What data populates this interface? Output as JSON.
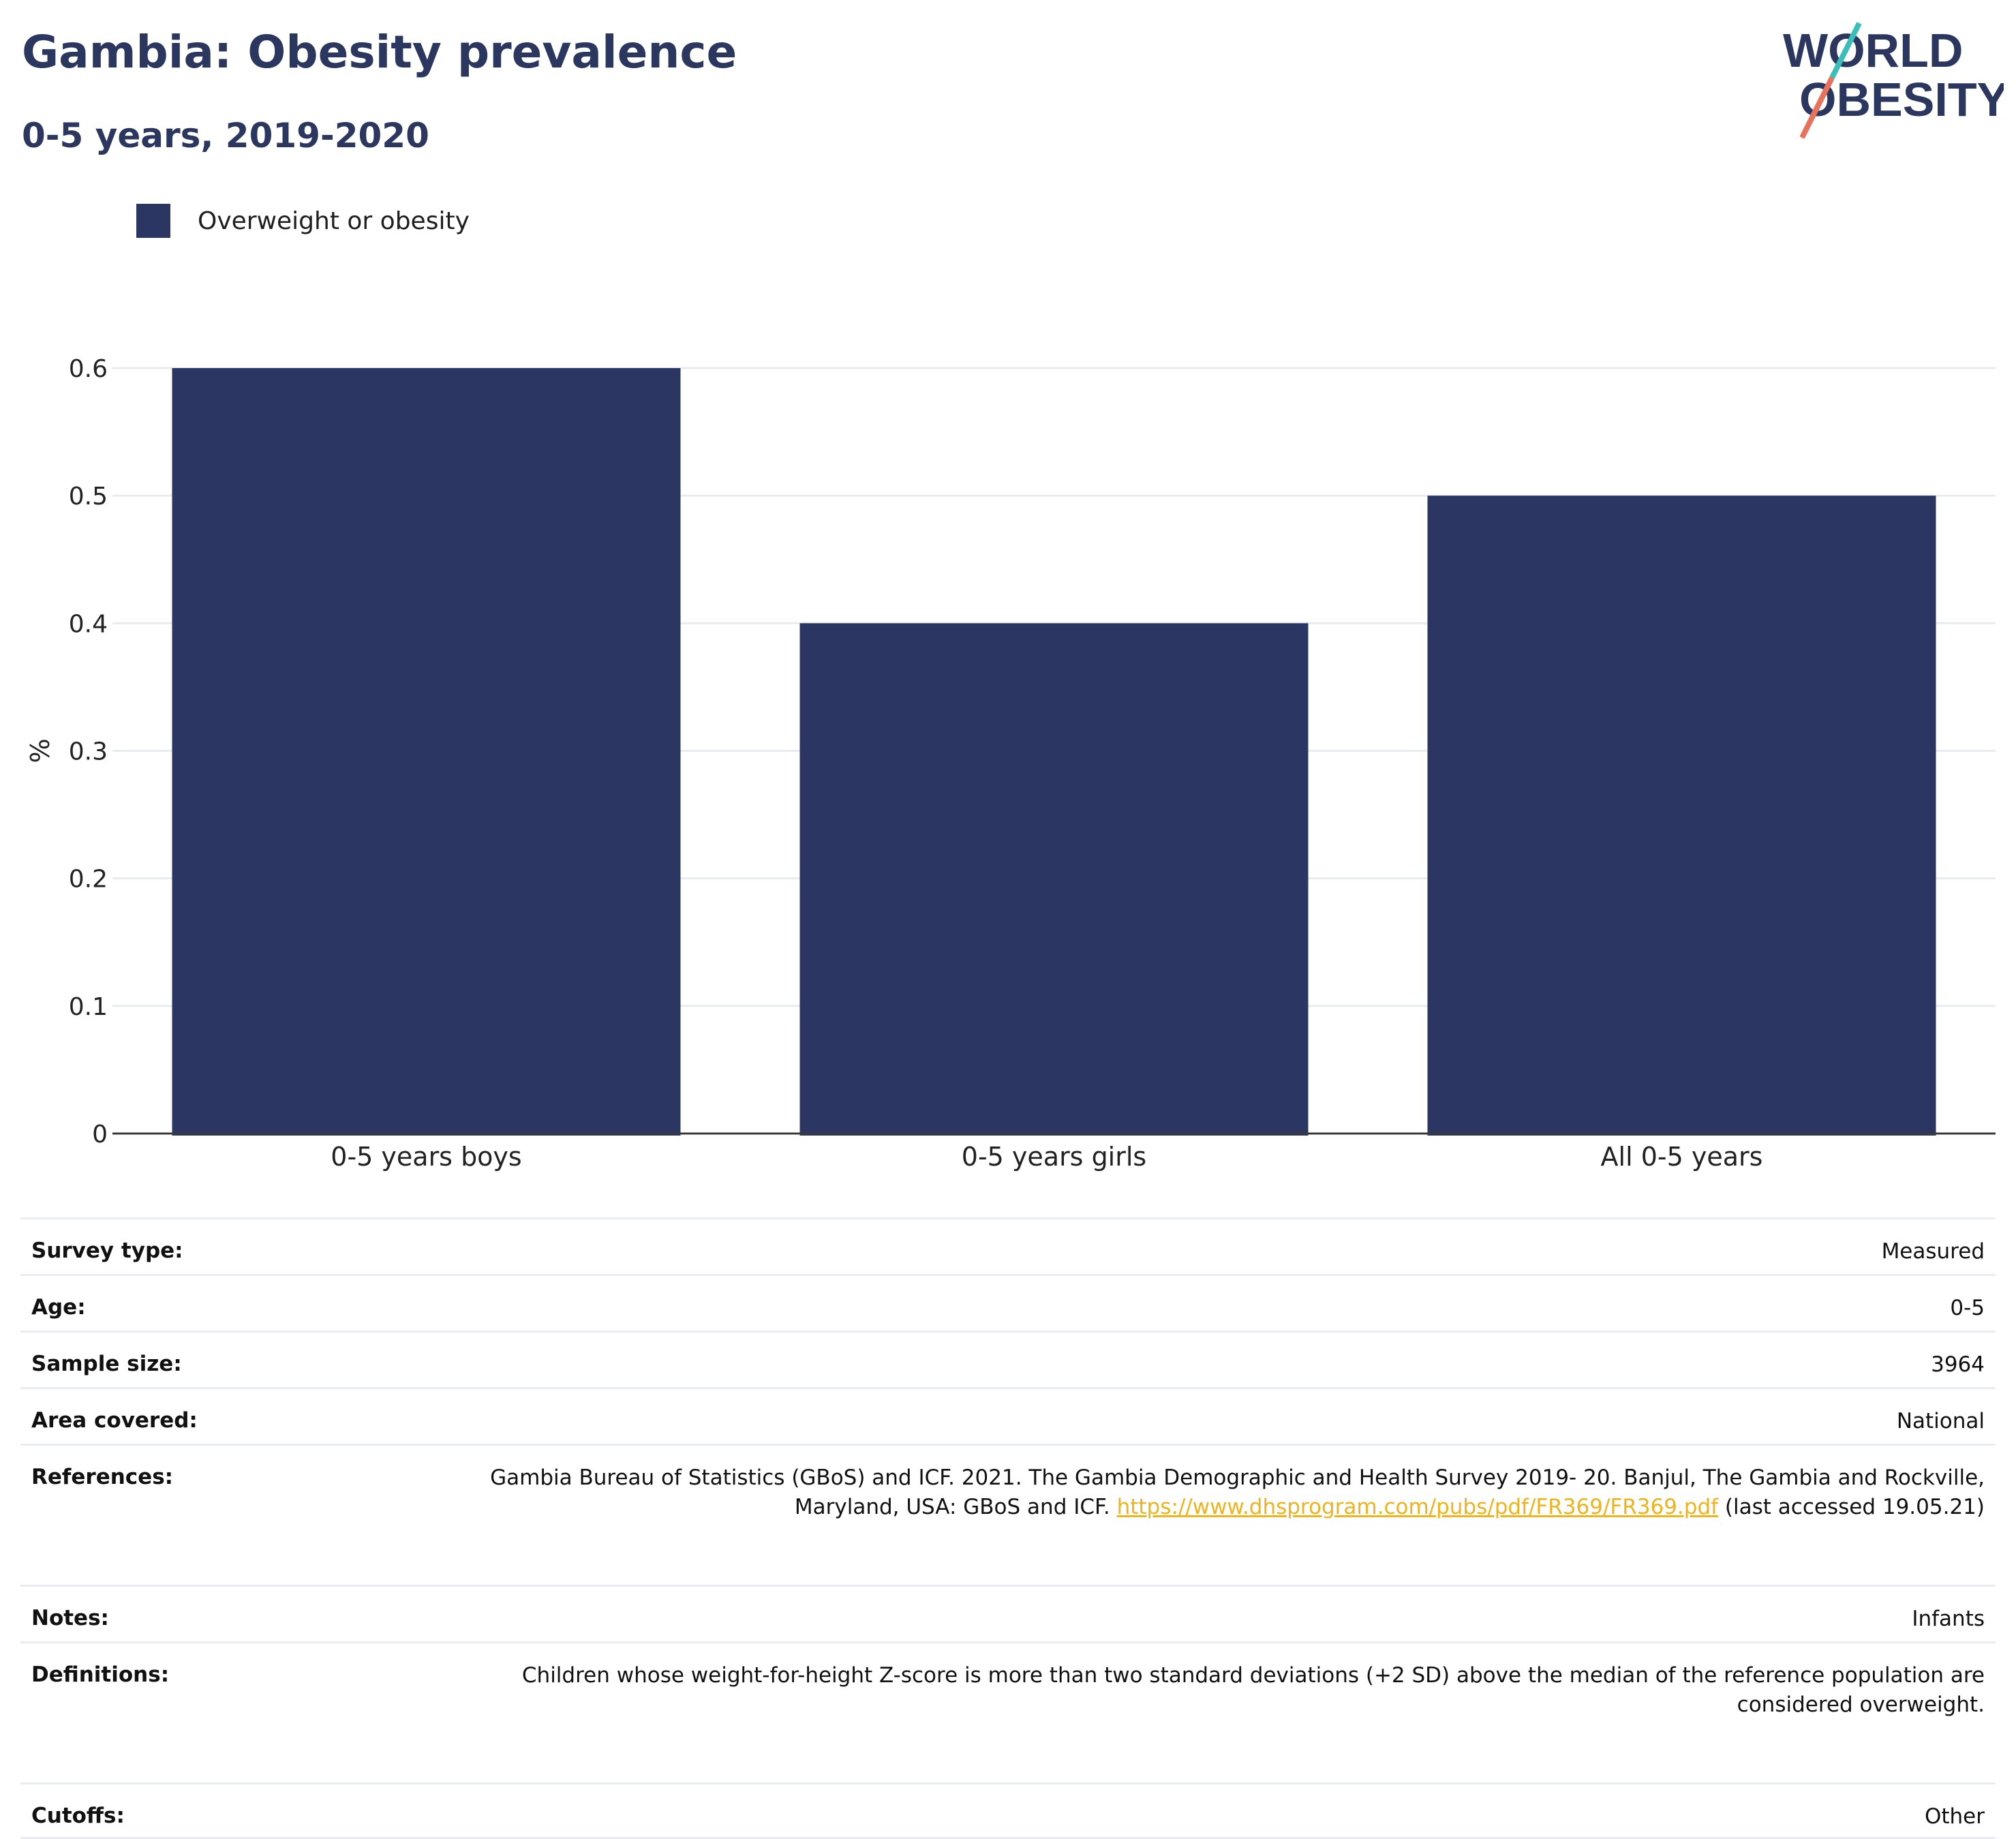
{
  "header": {
    "title": "Gambia: Obesity prevalence",
    "subtitle": "0-5 years, 2019-2020"
  },
  "logo": {
    "line1": "WORLD",
    "line2": "OBESITY"
  },
  "colors": {
    "bar": "#2b3762",
    "title": "#2b375f",
    "logo_teal": "#3bbdb8",
    "logo_coral": "#e8725c",
    "link": "#f1b31c"
  },
  "chart_data": {
    "type": "bar",
    "categories": [
      "0-5 years boys",
      "0-5 years girls",
      "All 0-5 years"
    ],
    "series": [
      {
        "name": "Overweight or obesity",
        "values": [
          0.6,
          0.4,
          0.5
        ]
      }
    ],
    "title": "Gambia: Obesity prevalence",
    "subtitle": "0-5 years, 2019-2020",
    "xlabel": "",
    "ylabel": "%",
    "ylim": [
      0,
      0.6
    ],
    "yticks": [
      0,
      0.1,
      0.2,
      0.3,
      0.4,
      0.5,
      0.6
    ],
    "ytick_labels": [
      "0",
      "0.1",
      "0.2",
      "0.3",
      "0.4",
      "0.5",
      "0.6"
    ],
    "grid": true,
    "legend_position": "top-left"
  },
  "metadata": [
    {
      "label": "Survey type:",
      "value": "Measured"
    },
    {
      "label": "Age:",
      "value": "0-5"
    },
    {
      "label": "Sample size:",
      "value": "3964"
    },
    {
      "label": "Area covered:",
      "value": "National"
    },
    {
      "label": "References:",
      "value": "Gambia Bureau of Statistics (GBoS) and ICF. 2021. The Gambia Demographic and Health Survey 2019- 20. Banjul, The Gambia and Rockville, Maryland, USA: GBoS and ICF.",
      "link": "https://www.dhsprogram.com/pubs/pdf/FR369/FR369.pdf",
      "suffix": "(last accessed 19.05.21)"
    },
    {
      "label": "Notes:",
      "value": "Infants"
    },
    {
      "label": "Definitions:",
      "value": "Children whose weight-for-height Z-score is more than two standard deviations (+2 SD) above the median of the reference population are considered overweight."
    },
    {
      "label": "Cutoffs:",
      "value": "Other"
    }
  ]
}
